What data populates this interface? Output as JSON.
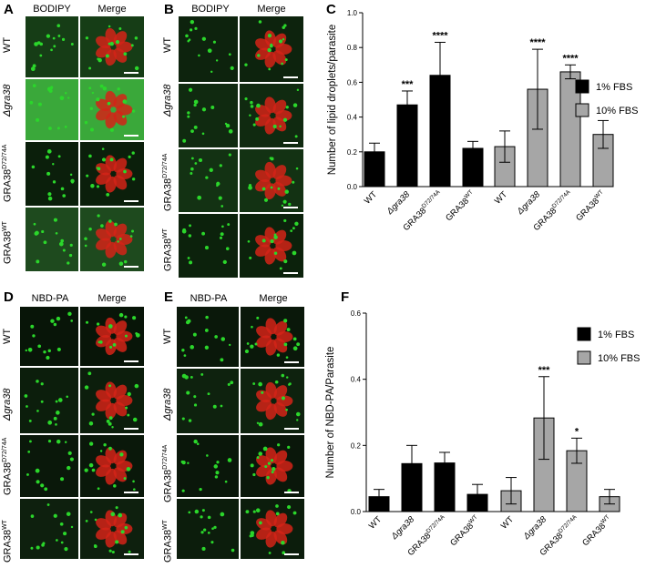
{
  "panels": {
    "A": {
      "letter": "A",
      "col1": "BODIPY",
      "col2": "Merge"
    },
    "B": {
      "letter": "B",
      "col1": "BODIPY",
      "col2": "Merge"
    },
    "D": {
      "letter": "D",
      "col1": "NBD-PA",
      "col2": "Merge"
    },
    "E": {
      "letter": "E",
      "col1": "NBD-PA",
      "col2": "Merge"
    },
    "C": {
      "letter": "C"
    },
    "F": {
      "letter": "F"
    }
  },
  "row_labels": {
    "wt": "WT",
    "gra38": "Δgra38",
    "mut_base": "GRA38",
    "mut_sup": "D72/74A",
    "wt_base": "GRA38",
    "wt_sup": "WT"
  },
  "colors": {
    "one_pct": "#000000",
    "ten_pct": "#a6a6a6",
    "green": "#2bd62b",
    "red": "#d42318"
  },
  "chart_data": [
    {
      "panel": "C",
      "type": "bar",
      "ylabel": "Number of lipid droplets/parasite",
      "ylim": [
        0,
        1.0
      ],
      "yticks": [
        "0.0",
        "0.2",
        "0.4",
        "0.6",
        "0.8",
        "1.0"
      ],
      "categories": [
        "WT",
        "Δgra38",
        "GRA38D72/74A",
        "GRA38WT"
      ],
      "series": [
        {
          "name": "1% FBS",
          "values": [
            0.2,
            0.47,
            0.64,
            0.22
          ],
          "err": [
            0.05,
            0.08,
            0.19,
            0.04
          ],
          "sig": [
            "",
            "***",
            "****",
            ""
          ]
        },
        {
          "name": "10% FBS",
          "values": [
            0.23,
            0.56,
            0.66,
            0.3
          ],
          "err": [
            0.09,
            0.23,
            0.04,
            0.08
          ],
          "sig": [
            "",
            "****",
            "****",
            ""
          ]
        }
      ],
      "legend": "right"
    },
    {
      "panel": "F",
      "type": "bar",
      "ylabel": "Number of NBD-PA/Parasite",
      "ylim": [
        0,
        0.6
      ],
      "yticks": [
        "0.0",
        "0.2",
        "0.4",
        "0.6"
      ],
      "categories": [
        "WT",
        "Δgra38",
        "GRA38D72/74A",
        "GRA38WT"
      ],
      "series": [
        {
          "name": "1% FBS",
          "values": [
            0.045,
            0.145,
            0.147,
            0.052
          ],
          "err": [
            0.022,
            0.055,
            0.032,
            0.03
          ],
          "sig": [
            "",
            "",
            "",
            ""
          ]
        },
        {
          "name": "10% FBS",
          "values": [
            0.063,
            0.283,
            0.184,
            0.045
          ],
          "err": [
            0.04,
            0.125,
            0.038,
            0.022
          ],
          "sig": [
            "",
            "***",
            "*",
            ""
          ]
        }
      ],
      "legend": "right"
    }
  ]
}
